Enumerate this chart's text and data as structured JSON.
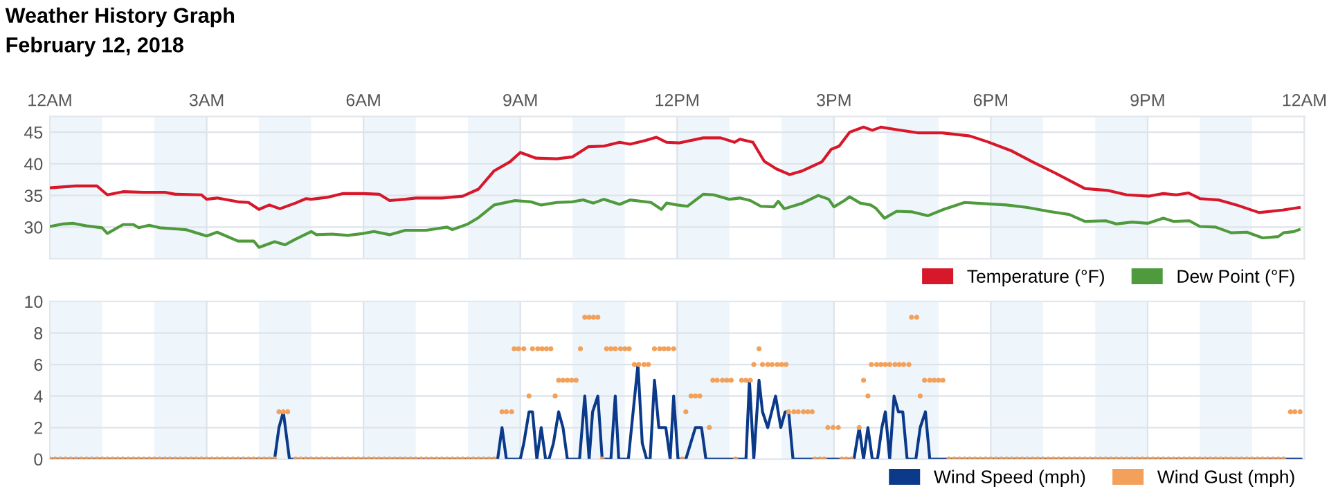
{
  "chart_data": [
    {
      "type": "line",
      "title": "Weather History Graph",
      "subtitle": "February 12, 2018",
      "xlim": [
        "2018-02-12T00:00",
        "2018-02-13T00:00"
      ],
      "xticks": [
        {
          "value": "2018-02-12T00:00",
          "label": "12AM"
        },
        {
          "value": "2018-02-12T03:00",
          "label": "3AM"
        },
        {
          "value": "2018-02-12T06:00",
          "label": "6AM"
        },
        {
          "value": "2018-02-12T09:00",
          "label": "9AM"
        },
        {
          "value": "2018-02-12T12:00",
          "label": "12PM"
        },
        {
          "value": "2018-02-12T15:00",
          "label": "3PM"
        },
        {
          "value": "2018-02-12T18:00",
          "label": "6PM"
        },
        {
          "value": "2018-02-12T21:00",
          "label": "9PM"
        },
        {
          "value": "2018-02-13T00:00",
          "label": "12AM"
        }
      ],
      "ylim": [
        25,
        47.5
      ],
      "yticks": [
        30,
        35,
        40,
        45
      ],
      "grid": true,
      "legend": "bottom right",
      "marker": "none",
      "line_style": "solid",
      "bands": [
        {
          "axis": "x",
          "from": "2018-02-12T00:00",
          "to": "2018-02-12T01:00",
          "color": "#eef5fb"
        },
        {
          "axis": "x",
          "from": "2018-02-12T02:00",
          "to": "2018-02-12T03:00",
          "color": "#eef5fb"
        },
        {
          "axis": "x",
          "from": "2018-02-12T04:00",
          "to": "2018-02-12T05:00",
          "color": "#eef5fb"
        },
        {
          "axis": "x",
          "from": "2018-02-12T06:00",
          "to": "2018-02-12T07:00",
          "color": "#eef5fb"
        },
        {
          "axis": "x",
          "from": "2018-02-12T08:00",
          "to": "2018-02-12T09:00",
          "color": "#eef5fb"
        },
        {
          "axis": "x",
          "from": "2018-02-12T10:00",
          "to": "2018-02-12T11:00",
          "color": "#eef5fb"
        },
        {
          "axis": "x",
          "from": "2018-02-12T12:00",
          "to": "2018-02-12T13:00",
          "color": "#eef5fb"
        },
        {
          "axis": "x",
          "from": "2018-02-12T14:00",
          "to": "2018-02-12T15:00",
          "color": "#eef5fb"
        },
        {
          "axis": "x",
          "from": "2018-02-12T16:00",
          "to": "2018-02-12T17:00",
          "color": "#eef5fb"
        },
        {
          "axis": "x",
          "from": "2018-02-12T18:00",
          "to": "2018-02-12T19:00",
          "color": "#eef5fb"
        },
        {
          "axis": "x",
          "from": "2018-02-12T20:00",
          "to": "2018-02-12T21:00",
          "color": "#eef5fb"
        },
        {
          "axis": "x",
          "from": "2018-02-12T22:00",
          "to": "2018-02-12T23:00",
          "color": "#eef5fb"
        }
      ],
      "series": [
        {
          "name": "Temperature (°F)",
          "color": "#d7182a",
          "x": [
            "2018-02-12T00:00",
            "2018-02-12T00:30",
            "2018-02-12T00:54",
            "2018-02-12T01:06",
            "2018-02-12T01:24",
            "2018-02-12T01:48",
            "2018-02-12T02:12",
            "2018-02-12T02:24",
            "2018-02-12T02:54",
            "2018-02-12T03:00",
            "2018-02-12T03:12",
            "2018-02-12T03:36",
            "2018-02-12T03:48",
            "2018-02-12T04:00",
            "2018-02-12T04:12",
            "2018-02-12T04:24",
            "2018-02-12T04:42",
            "2018-02-12T04:54",
            "2018-02-12T05:00",
            "2018-02-12T05:18",
            "2018-02-12T05:36",
            "2018-02-12T06:00",
            "2018-02-12T06:18",
            "2018-02-12T06:30",
            "2018-02-12T06:48",
            "2018-02-12T07:00",
            "2018-02-12T07:30",
            "2018-02-12T07:54",
            "2018-02-12T08:12",
            "2018-02-12T08:30",
            "2018-02-12T08:48",
            "2018-02-12T09:00",
            "2018-02-12T09:18",
            "2018-02-12T09:42",
            "2018-02-12T10:00",
            "2018-02-12T10:18",
            "2018-02-12T10:36",
            "2018-02-12T10:54",
            "2018-02-12T11:06",
            "2018-02-12T11:24",
            "2018-02-12T11:36",
            "2018-02-12T11:48",
            "2018-02-12T12:02",
            "2018-02-12T12:30",
            "2018-02-12T12:50",
            "2018-02-12T13:06",
            "2018-02-12T13:12",
            "2018-02-12T13:27",
            "2018-02-12T13:40",
            "2018-02-12T13:54",
            "2018-02-12T14:09",
            "2018-02-12T14:24",
            "2018-02-12T14:46",
            "2018-02-12T14:57",
            "2018-02-12T15:06",
            "2018-02-12T15:18",
            "2018-02-12T15:34",
            "2018-02-12T15:44",
            "2018-02-12T15:54",
            "2018-02-12T16:12",
            "2018-02-12T16:36",
            "2018-02-12T17:04",
            "2018-02-12T17:36",
            "2018-02-12T17:56",
            "2018-02-12T18:23",
            "2018-02-12T18:48",
            "2018-02-12T19:16",
            "2018-02-12T19:48",
            "2018-02-12T20:14",
            "2018-02-12T20:36",
            "2018-02-12T21:02",
            "2018-02-12T21:18",
            "2018-02-12T21:33",
            "2018-02-12T21:47",
            "2018-02-12T22:00",
            "2018-02-12T22:21",
            "2018-02-12T22:42",
            "2018-02-12T23:08",
            "2018-02-12T23:35",
            "2018-02-12T23:54"
          ],
          "values": [
            36.2,
            36.5,
            36.5,
            35.1,
            35.6,
            35.5,
            35.5,
            35.2,
            35.1,
            34.4,
            34.6,
            34.0,
            33.9,
            32.8,
            33.5,
            32.9,
            33.8,
            34.5,
            34.4,
            34.7,
            35.3,
            35.3,
            35.2,
            34.2,
            34.4,
            34.6,
            34.6,
            34.9,
            36.0,
            38.9,
            40.3,
            41.8,
            40.9,
            40.8,
            41.1,
            42.7,
            42.8,
            43.4,
            43.1,
            43.7,
            44.2,
            43.4,
            43.3,
            44.1,
            44.1,
            43.4,
            43.9,
            43.4,
            40.4,
            39.2,
            38.3,
            38.9,
            40.3,
            42.3,
            42.8,
            45.0,
            45.8,
            45.3,
            45.8,
            45.4,
            44.9,
            44.9,
            44.4,
            43.5,
            42.1,
            40.3,
            38.4,
            36.1,
            35.8,
            35.1,
            34.9,
            35.3,
            35.1,
            35.4,
            34.5,
            34.3,
            33.5,
            32.3,
            32.7,
            33.1
          ]
        },
        {
          "name": "Dew Point (°F)",
          "color": "#4f9a3c",
          "x": [
            "2018-02-12T00:00",
            "2018-02-12T00:15",
            "2018-02-12T00:27",
            "2018-02-12T00:42",
            "2018-02-12T01:00",
            "2018-02-12T01:06",
            "2018-02-12T01:24",
            "2018-02-12T01:36",
            "2018-02-12T01:42",
            "2018-02-12T01:54",
            "2018-02-12T02:06",
            "2018-02-12T02:36",
            "2018-02-12T03:00",
            "2018-02-12T03:12",
            "2018-02-12T03:36",
            "2018-02-12T03:54",
            "2018-02-12T04:00",
            "2018-02-12T04:18",
            "2018-02-12T04:30",
            "2018-02-12T04:42",
            "2018-02-12T05:00",
            "2018-02-12T05:06",
            "2018-02-12T05:24",
            "2018-02-12T05:42",
            "2018-02-12T06:00",
            "2018-02-12T06:12",
            "2018-02-12T06:30",
            "2018-02-12T06:48",
            "2018-02-12T07:12",
            "2018-02-12T07:36",
            "2018-02-12T07:42",
            "2018-02-12T08:00",
            "2018-02-12T08:12",
            "2018-02-12T08:30",
            "2018-02-12T08:54",
            "2018-02-12T09:12",
            "2018-02-12T09:24",
            "2018-02-12T09:42",
            "2018-02-12T10:00",
            "2018-02-12T10:12",
            "2018-02-12T10:24",
            "2018-02-12T10:36",
            "2018-02-12T10:54",
            "2018-02-12T11:06",
            "2018-02-12T11:30",
            "2018-02-12T11:42",
            "2018-02-12T11:48",
            "2018-02-12T12:00",
            "2018-02-12T12:12",
            "2018-02-12T12:30",
            "2018-02-12T12:42",
            "2018-02-12T13:00",
            "2018-02-12T13:12",
            "2018-02-12T13:24",
            "2018-02-12T13:36",
            "2018-02-12T13:51",
            "2018-02-12T13:56",
            "2018-02-12T14:03",
            "2018-02-12T14:24",
            "2018-02-12T14:42",
            "2018-02-12T14:54",
            "2018-02-12T15:00",
            "2018-02-12T15:12",
            "2018-02-12T15:18",
            "2018-02-12T15:30",
            "2018-02-12T15:42",
            "2018-02-12T15:48",
            "2018-02-12T15:58",
            "2018-02-12T16:12",
            "2018-02-12T16:30",
            "2018-02-12T16:48",
            "2018-02-12T17:06",
            "2018-02-12T17:30",
            "2018-02-12T17:54",
            "2018-02-12T18:18",
            "2018-02-12T18:42",
            "2018-02-12T19:06",
            "2018-02-12T19:30",
            "2018-02-12T19:48",
            "2018-02-12T20:12",
            "2018-02-12T20:24",
            "2018-02-12T20:42",
            "2018-02-12T21:00",
            "2018-02-12T21:18",
            "2018-02-12T21:30",
            "2018-02-12T21:48",
            "2018-02-12T22:00",
            "2018-02-12T22:18",
            "2018-02-12T22:36",
            "2018-02-12T22:54",
            "2018-02-12T23:12",
            "2018-02-12T23:30",
            "2018-02-12T23:36",
            "2018-02-12T23:48",
            "2018-02-12T23:54"
          ],
          "values": [
            30.1,
            30.5,
            30.6,
            30.2,
            29.9,
            29.0,
            30.4,
            30.4,
            29.9,
            30.3,
            29.9,
            29.6,
            28.6,
            29.2,
            27.8,
            27.8,
            26.8,
            27.7,
            27.2,
            28.1,
            29.3,
            28.8,
            28.9,
            28.7,
            29.0,
            29.3,
            28.8,
            29.5,
            29.5,
            30.0,
            29.6,
            30.5,
            31.5,
            33.5,
            34.2,
            34.0,
            33.5,
            33.9,
            34.0,
            34.3,
            33.8,
            34.4,
            33.6,
            34.3,
            33.9,
            32.8,
            33.8,
            33.5,
            33.3,
            35.2,
            35.1,
            34.4,
            34.6,
            34.2,
            33.3,
            33.2,
            34.1,
            32.9,
            33.8,
            35.0,
            34.4,
            33.2,
            34.2,
            34.8,
            33.8,
            33.5,
            33.0,
            31.4,
            32.5,
            32.4,
            31.8,
            32.8,
            33.9,
            33.7,
            33.5,
            33.1,
            32.5,
            32.0,
            30.9,
            31.0,
            30.5,
            30.8,
            30.6,
            31.4,
            30.9,
            31.0,
            30.1,
            30.0,
            29.1,
            29.2,
            28.3,
            28.5,
            29.1,
            29.3,
            29.6
          ]
        }
      ]
    },
    {
      "type": "line",
      "xlim": [
        "2018-02-12T00:00",
        "2018-02-13T00:00"
      ],
      "xticks": [
        {
          "value": "2018-02-12T00:00",
          "label": null
        },
        {
          "value": "2018-02-12T03:00",
          "label": null
        },
        {
          "value": "2018-02-12T06:00",
          "label": null
        },
        {
          "value": "2018-02-12T09:00",
          "label": null
        },
        {
          "value": "2018-02-12T12:00",
          "label": null
        },
        {
          "value": "2018-02-12T15:00",
          "label": null
        },
        {
          "value": "2018-02-12T18:00",
          "label": null
        },
        {
          "value": "2018-02-12T21:00",
          "label": null
        },
        {
          "value": "2018-02-13T00:00",
          "label": null
        }
      ],
      "tick_labels": "y",
      "ylim": [
        0,
        10
      ],
      "yticks": [
        0,
        2,
        4,
        6,
        8,
        10
      ],
      "grid": true,
      "legend": "bottom right",
      "bands": [
        {
          "axis": "x",
          "from": "2018-02-12T00:00",
          "to": "2018-02-12T01:00",
          "color": "#eef5fb"
        },
        {
          "axis": "x",
          "from": "2018-02-12T02:00",
          "to": "2018-02-12T03:00",
          "color": "#eef5fb"
        },
        {
          "axis": "x",
          "from": "2018-02-12T04:00",
          "to": "2018-02-12T05:00",
          "color": "#eef5fb"
        },
        {
          "axis": "x",
          "from": "2018-02-12T06:00",
          "to": "2018-02-12T07:00",
          "color": "#eef5fb"
        },
        {
          "axis": "x",
          "from": "2018-02-12T08:00",
          "to": "2018-02-12T09:00",
          "color": "#eef5fb"
        },
        {
          "axis": "x",
          "from": "2018-02-12T10:00",
          "to": "2018-02-12T11:00",
          "color": "#eef5fb"
        },
        {
          "axis": "x",
          "from": "2018-02-12T12:00",
          "to": "2018-02-12T13:00",
          "color": "#eef5fb"
        },
        {
          "axis": "x",
          "from": "2018-02-12T14:00",
          "to": "2018-02-12T15:00",
          "color": "#eef5fb"
        },
        {
          "axis": "x",
          "from": "2018-02-12T16:00",
          "to": "2018-02-12T17:00",
          "color": "#eef5fb"
        },
        {
          "axis": "x",
          "from": "2018-02-12T18:00",
          "to": "2018-02-12T19:00",
          "color": "#eef5fb"
        },
        {
          "axis": "x",
          "from": "2018-02-12T20:00",
          "to": "2018-02-12T21:00",
          "color": "#eef5fb"
        },
        {
          "axis": "x",
          "from": "2018-02-12T22:00",
          "to": "2018-02-12T23:00",
          "color": "#eef5fb"
        }
      ],
      "series": [
        {
          "name": "Wind Speed (mph)",
          "type": "line",
          "marker": "none",
          "line_style": "solid",
          "color": "#0b3a8a",
          "x": [
            "2018-02-12T00:00",
            "2018-02-12T04:18",
            "2018-02-12T04:23",
            "2018-02-12T04:28",
            "2018-02-12T04:35",
            "2018-02-12T08:34",
            "2018-02-12T08:39",
            "2018-02-12T08:44",
            "2018-02-12T09:00",
            "2018-02-12T09:04",
            "2018-02-12T09:10",
            "2018-02-12T09:14",
            "2018-02-12T09:19",
            "2018-02-12T09:24",
            "2018-02-12T09:29",
            "2018-02-12T09:33",
            "2018-02-12T09:38",
            "2018-02-12T09:44",
            "2018-02-12T09:49",
            "2018-02-12T09:54",
            "2018-02-12T10:08",
            "2018-02-12T10:14",
            "2018-02-12T10:19",
            "2018-02-12T10:23",
            "2018-02-12T10:29",
            "2018-02-12T10:34",
            "2018-02-12T10:44",
            "2018-02-12T10:49",
            "2018-02-12T10:53",
            "2018-02-12T11:04",
            "2018-02-12T11:15",
            "2018-02-12T11:20",
            "2018-02-12T11:25",
            "2018-02-12T11:29",
            "2018-02-12T11:34",
            "2018-02-12T11:39",
            "2018-02-12T11:47",
            "2018-02-12T11:52",
            "2018-02-12T11:56",
            "2018-02-12T12:01",
            "2018-02-12T12:10",
            "2018-02-12T12:21",
            "2018-02-12T12:28",
            "2018-02-12T12:33",
            "2018-02-12T13:19",
            "2018-02-12T13:23",
            "2018-02-12T13:28",
            "2018-02-12T13:34",
            "2018-02-12T13:38",
            "2018-02-12T13:44",
            "2018-02-12T13:53",
            "2018-02-12T13:59",
            "2018-02-12T14:04",
            "2018-02-12T14:08",
            "2018-02-12T14:13",
            "2018-02-12T15:23",
            "2018-02-12T15:29",
            "2018-02-12T15:34",
            "2018-02-12T15:39",
            "2018-02-12T15:44",
            "2018-02-12T15:50",
            "2018-02-12T15:55",
            "2018-02-12T15:59",
            "2018-02-12T16:04",
            "2018-02-12T16:09",
            "2018-02-12T16:14",
            "2018-02-12T16:19",
            "2018-02-12T16:24",
            "2018-02-12T16:34",
            "2018-02-12T16:39",
            "2018-02-12T16:45",
            "2018-02-12T16:50",
            "2018-02-12T23:56"
          ],
          "values": [
            0,
            0,
            2,
            3,
            0,
            0,
            2,
            0,
            0,
            1,
            3,
            3,
            0,
            2,
            0,
            0,
            1,
            3,
            2,
            0,
            0,
            4,
            0,
            3,
            4,
            0,
            0,
            4,
            0,
            0,
            6,
            1,
            0,
            0,
            5,
            2,
            2,
            0,
            4,
            0,
            0,
            2,
            2,
            0,
            0,
            5,
            0,
            5,
            3,
            2,
            4,
            2,
            3,
            3,
            0,
            0,
            2,
            0,
            2,
            0,
            0,
            2,
            3,
            0,
            4,
            3,
            3,
            0,
            0,
            2,
            3,
            0,
            0
          ]
        },
        {
          "name": "Wind Gust (mph)",
          "type": "scatter",
          "marker": "circle",
          "color": "#f2a05a",
          "x": [
            "2018-02-12T00:00",
            "2018-02-12T00:06",
            "2018-02-12T00:12",
            "2018-02-12T00:18",
            "2018-02-12T00:24",
            "2018-02-12T00:30",
            "2018-02-12T00:36",
            "2018-02-12T00:42",
            "2018-02-12T00:48",
            "2018-02-12T00:54",
            "2018-02-12T01:00",
            "2018-02-12T01:06",
            "2018-02-12T01:12",
            "2018-02-12T01:18",
            "2018-02-12T01:24",
            "2018-02-12T01:30",
            "2018-02-12T01:36",
            "2018-02-12T01:42",
            "2018-02-12T01:48",
            "2018-02-12T01:54",
            "2018-02-12T02:00",
            "2018-02-12T02:06",
            "2018-02-12T02:12",
            "2018-02-12T02:18",
            "2018-02-12T02:24",
            "2018-02-12T02:30",
            "2018-02-12T02:36",
            "2018-02-12T02:42",
            "2018-02-12T02:48",
            "2018-02-12T02:54",
            "2018-02-12T03:00",
            "2018-02-12T03:06",
            "2018-02-12T03:12",
            "2018-02-12T03:18",
            "2018-02-12T03:24",
            "2018-02-12T03:30",
            "2018-02-12T03:36",
            "2018-02-12T03:42",
            "2018-02-12T03:48",
            "2018-02-12T03:54",
            "2018-02-12T04:00",
            "2018-02-12T04:06",
            "2018-02-12T04:12",
            "2018-02-12T04:18",
            "2018-02-12T04:23",
            "2018-02-12T04:28",
            "2018-02-12T04:33",
            "2018-02-12T04:42",
            "2018-02-12T04:48",
            "2018-02-12T04:54",
            "2018-02-12T05:00",
            "2018-02-12T05:06",
            "2018-02-12T05:12",
            "2018-02-12T05:18",
            "2018-02-12T05:24",
            "2018-02-12T05:30",
            "2018-02-12T05:36",
            "2018-02-12T05:42",
            "2018-02-12T05:48",
            "2018-02-12T05:54",
            "2018-02-12T06:00",
            "2018-02-12T06:06",
            "2018-02-12T06:12",
            "2018-02-12T06:18",
            "2018-02-12T06:24",
            "2018-02-12T06:30",
            "2018-02-12T06:36",
            "2018-02-12T06:42",
            "2018-02-12T06:48",
            "2018-02-12T06:54",
            "2018-02-12T07:00",
            "2018-02-12T07:06",
            "2018-02-12T07:12",
            "2018-02-12T07:18",
            "2018-02-12T07:24",
            "2018-02-12T07:30",
            "2018-02-12T07:36",
            "2018-02-12T07:42",
            "2018-02-12T07:48",
            "2018-02-12T07:54",
            "2018-02-12T08:00",
            "2018-02-12T08:06",
            "2018-02-12T08:12",
            "2018-02-12T08:18",
            "2018-02-12T08:24",
            "2018-02-12T08:30",
            "2018-02-12T08:39",
            "2018-02-12T08:44",
            "2018-02-12T08:50",
            "2018-02-12T08:53",
            "2018-02-12T08:58",
            "2018-02-12T09:04",
            "2018-02-12T09:10",
            "2018-02-12T09:14",
            "2018-02-12T09:20",
            "2018-02-12T09:25",
            "2018-02-12T09:30",
            "2018-02-12T09:35",
            "2018-02-12T09:40",
            "2018-02-12T09:44",
            "2018-02-12T09:49",
            "2018-02-12T09:54",
            "2018-02-12T09:59",
            "2018-02-12T10:04",
            "2018-02-12T10:09",
            "2018-02-12T10:14",
            "2018-02-12T10:19",
            "2018-02-12T10:24",
            "2018-02-12T10:29",
            "2018-02-12T10:34",
            "2018-02-12T10:39",
            "2018-02-12T10:44",
            "2018-02-12T10:49",
            "2018-02-12T10:55",
            "2018-02-12T11:00",
            "2018-02-12T11:05",
            "2018-02-12T11:11",
            "2018-02-12T11:16",
            "2018-02-12T11:22",
            "2018-02-12T11:27",
            "2018-02-12T11:34",
            "2018-02-12T11:40",
            "2018-02-12T11:45",
            "2018-02-12T11:50",
            "2018-02-12T11:56",
            "2018-02-12T12:06",
            "2018-02-12T12:10",
            "2018-02-12T12:16",
            "2018-02-12T12:21",
            "2018-02-12T12:26",
            "2018-02-12T12:37",
            "2018-02-12T12:41",
            "2018-02-12T12:46",
            "2018-02-12T12:52",
            "2018-02-12T12:57",
            "2018-02-12T13:02",
            "2018-02-12T13:07",
            "2018-02-12T13:14",
            "2018-02-12T13:19",
            "2018-02-12T13:24",
            "2018-02-12T13:28",
            "2018-02-12T13:34",
            "2018-02-12T13:38",
            "2018-02-12T13:44",
            "2018-02-12T13:49",
            "2018-02-12T13:55",
            "2018-02-12T14:00",
            "2018-02-12T14:05",
            "2018-02-12T14:08",
            "2018-02-12T14:14",
            "2018-02-12T14:19",
            "2018-02-12T14:25",
            "2018-02-12T14:30",
            "2018-02-12T14:35",
            "2018-02-12T14:38",
            "2018-02-12T14:44",
            "2018-02-12T14:49",
            "2018-02-12T14:53",
            "2018-02-12T14:59",
            "2018-02-12T15:05",
            "2018-02-12T15:09",
            "2018-02-12T15:14",
            "2018-02-12T15:20",
            "2018-02-12T15:29",
            "2018-02-12T15:34",
            "2018-02-12T15:39",
            "2018-02-12T15:43",
            "2018-02-12T15:49",
            "2018-02-12T15:54",
            "2018-02-12T15:59",
            "2018-02-12T16:04",
            "2018-02-12T16:10",
            "2018-02-12T16:15",
            "2018-02-12T16:20",
            "2018-02-12T16:26",
            "2018-02-12T16:29",
            "2018-02-12T16:35",
            "2018-02-12T16:39",
            "2018-02-12T16:44",
            "2018-02-12T16:50",
            "2018-02-12T16:55",
            "2018-02-12T17:00",
            "2018-02-12T17:05",
            "2018-02-12T17:12",
            "2018-02-12T17:18",
            "2018-02-12T17:24",
            "2018-02-12T17:30",
            "2018-02-12T17:36",
            "2018-02-12T17:42",
            "2018-02-12T17:48",
            "2018-02-12T17:54",
            "2018-02-12T18:00",
            "2018-02-12T18:06",
            "2018-02-12T18:12",
            "2018-02-12T18:18",
            "2018-02-12T18:24",
            "2018-02-12T18:30",
            "2018-02-12T18:36",
            "2018-02-12T18:42",
            "2018-02-12T18:48",
            "2018-02-12T18:54",
            "2018-02-12T19:00",
            "2018-02-12T19:06",
            "2018-02-12T19:12",
            "2018-02-12T19:18",
            "2018-02-12T19:24",
            "2018-02-12T19:30",
            "2018-02-12T19:36",
            "2018-02-12T19:42",
            "2018-02-12T19:48",
            "2018-02-12T19:54",
            "2018-02-12T20:00",
            "2018-02-12T20:06",
            "2018-02-12T20:12",
            "2018-02-12T20:18",
            "2018-02-12T20:24",
            "2018-02-12T20:30",
            "2018-02-12T20:36",
            "2018-02-12T20:42",
            "2018-02-12T20:48",
            "2018-02-12T20:54",
            "2018-02-12T21:00",
            "2018-02-12T21:06",
            "2018-02-12T21:12",
            "2018-02-12T21:18",
            "2018-02-12T21:24",
            "2018-02-12T21:30",
            "2018-02-12T21:36",
            "2018-02-12T21:42",
            "2018-02-12T21:48",
            "2018-02-12T21:54",
            "2018-02-12T22:00",
            "2018-02-12T22:06",
            "2018-02-12T22:12",
            "2018-02-12T22:18",
            "2018-02-12T22:24",
            "2018-02-12T22:30",
            "2018-02-12T22:36",
            "2018-02-12T22:42",
            "2018-02-12T22:48",
            "2018-02-12T22:54",
            "2018-02-12T23:00",
            "2018-02-12T23:06",
            "2018-02-12T23:12",
            "2018-02-12T23:18",
            "2018-02-12T23:24",
            "2018-02-12T23:30",
            "2018-02-12T23:36",
            "2018-02-12T23:44",
            "2018-02-12T23:49",
            "2018-02-12T23:55"
          ],
          "values": [
            0,
            0,
            0,
            0,
            0,
            0,
            0,
            0,
            0,
            0,
            0,
            0,
            0,
            0,
            0,
            0,
            0,
            0,
            0,
            0,
            0,
            0,
            0,
            0,
            0,
            0,
            0,
            0,
            0,
            0,
            0,
            0,
            0,
            0,
            0,
            0,
            0,
            0,
            0,
            0,
            0,
            0,
            0,
            0,
            3,
            3,
            3,
            0,
            0,
            0,
            0,
            0,
            0,
            0,
            0,
            0,
            0,
            0,
            0,
            0,
            0,
            0,
            0,
            0,
            0,
            0,
            0,
            0,
            0,
            0,
            0,
            0,
            0,
            0,
            0,
            0,
            0,
            0,
            0,
            0,
            0,
            0,
            0,
            0,
            0,
            0,
            3,
            3,
            3,
            7,
            7,
            7,
            4,
            7,
            7,
            7,
            7,
            7,
            4,
            5,
            5,
            5,
            5,
            5,
            7,
            9,
            9,
            9,
            9,
            0,
            7,
            7,
            7,
            7,
            7,
            7,
            6,
            6,
            6,
            6,
            7,
            7,
            7,
            7,
            7,
            0,
            3,
            4,
            4,
            4,
            2,
            5,
            5,
            5,
            5,
            5,
            0,
            5,
            5,
            5,
            6,
            7,
            6,
            6,
            6,
            6,
            6,
            6,
            3,
            3,
            3,
            3,
            3,
            3,
            0,
            0,
            0,
            2,
            2,
            2,
            0,
            0,
            0,
            2,
            5,
            4,
            6,
            6,
            6,
            6,
            6,
            6,
            6,
            6,
            6,
            9,
            9,
            4,
            5,
            5,
            5,
            5,
            5,
            0,
            0,
            0,
            0,
            0,
            0,
            0,
            0,
            0,
            0,
            0,
            0,
            0,
            0,
            0,
            0,
            0,
            0,
            0,
            0,
            0,
            0,
            0,
            0,
            0,
            0,
            0,
            0,
            0,
            0,
            0,
            0,
            0,
            0,
            0,
            0,
            0,
            0,
            0,
            0,
            0,
            0,
            0,
            0,
            0,
            0,
            0,
            0,
            0,
            0,
            0,
            0,
            0,
            0,
            0,
            0,
            0,
            0,
            0,
            0,
            0,
            0,
            0,
            0,
            0,
            3,
            3,
            3
          ]
        }
      ]
    }
  ]
}
